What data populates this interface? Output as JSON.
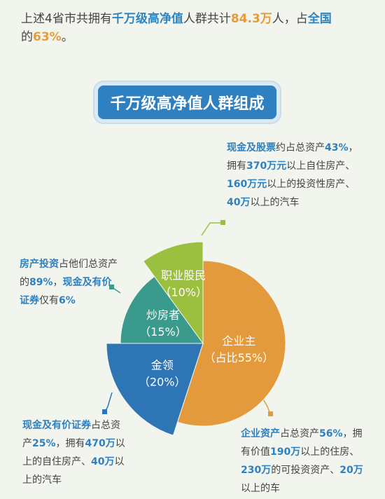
{
  "intro": {
    "p1": "上述4省市共拥有",
    "p2": "千万级高净值",
    "p3": "人群共计",
    "p4": "84.3万",
    "p5": "人，占",
    "p6": "全国",
    "p7": "的",
    "p8": "63%",
    "p9": "。"
  },
  "notes": {
    "cash": {
      "k1": "现金及股票",
      "t1": "约占总资产",
      "k2": "43%",
      "t2": "，拥有",
      "k3": "370万元",
      "t3": "以上自住房产、",
      "k4": "160万元",
      "t4": "以上的投资性房产、",
      "k5": "40万",
      "t5": "以上的汽车"
    },
    "spec": {
      "k1": "房产投资",
      "t1": "占他们总资产的",
      "k2": "89%",
      "t2": "，",
      "k3": "现金及有价证券",
      "t3": "仅有",
      "k4": "6%"
    },
    "white": {
      "k1": "现金及有价证券",
      "t1": "占总资产",
      "k2": "25%",
      "t2": "，拥有",
      "k3": "470万",
      "t3": "以上的自住房产、",
      "k4": "40万",
      "t4": "以上的汽车"
    },
    "owner": {
      "k1": "企业资产",
      "t1": "占总资产",
      "k2": "56%",
      "t2": "，拥有价值",
      "k3": "190万",
      "t3": "以上的住房、",
      "k4": "230万",
      "t4": "的可投资资产、",
      "k5": "20万",
      "t5": "以上的车"
    }
  },
  "chart_data": {
    "type": "pie",
    "title": "千万级高净值人群组成",
    "slices": [
      {
        "name": "企业主",
        "pct_label": "（占比55%）",
        "value": 55,
        "color": "#e39a3d"
      },
      {
        "name": "金领",
        "pct_label": "（20%）",
        "value": 20,
        "color": "#2e75b6"
      },
      {
        "name": "炒房者",
        "pct_label": "（15%）",
        "value": 15,
        "color": "#3a9a8b"
      },
      {
        "name": "职业股民",
        "pct_label": "（10%）",
        "value": 10,
        "color": "#9bbf3f"
      }
    ]
  }
}
